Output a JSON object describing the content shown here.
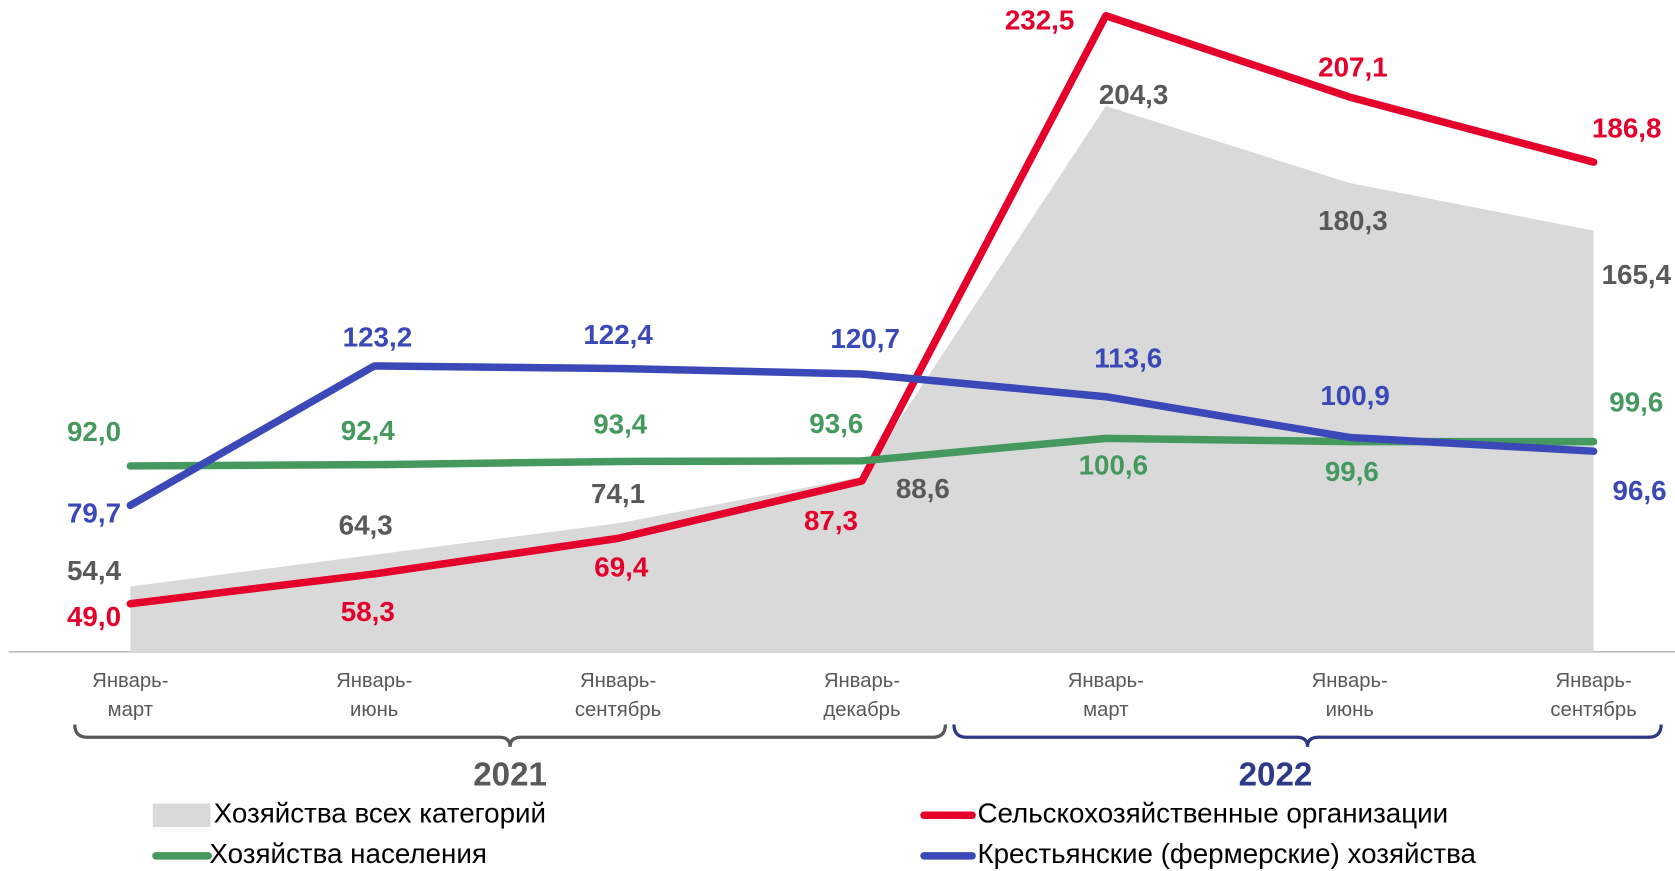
{
  "chart_data": {
    "type": "line",
    "categories": [
      [
        "Январь-",
        "март"
      ],
      [
        "Январь-",
        "июнь"
      ],
      [
        "Январь-",
        "сентябрь"
      ],
      [
        "Январь-",
        "декабрь"
      ],
      [
        "Январь-",
        "март"
      ],
      [
        "Январь-",
        "июнь"
      ],
      [
        "Январь-",
        "сентябрь"
      ]
    ],
    "groups": [
      {
        "label": "2021",
        "color": "#595959"
      },
      {
        "label": "2022",
        "color": "#2e3a87"
      }
    ],
    "ylim": [
      34,
      234
    ],
    "series": [
      {
        "name": "Хозяйства всех категорий",
        "kind": "area",
        "color": "#d9d9d9",
        "label_color": "#595959",
        "values": [
          54.4,
          64.3,
          74.1,
          88.6,
          204.3,
          180.3,
          165.4
        ],
        "value_labels": [
          "54,4",
          "64,3",
          "74,1",
          "88,6",
          "204,3",
          "180,3",
          "165,4"
        ]
      },
      {
        "name": "Сельскохозяйственные организации",
        "kind": "line",
        "color": "#e4002b",
        "label_color": "#e4002b",
        "values": [
          49.0,
          58.3,
          69.4,
          87.3,
          232.5,
          207.1,
          186.8
        ],
        "value_labels": [
          "49,0",
          "58,3",
          "69,4",
          "87,3",
          "232,5",
          "207,1",
          "186,8"
        ]
      },
      {
        "name": "Хозяйства населения",
        "kind": "line",
        "color": "#45995f",
        "label_color": "#45995f",
        "values": [
          92.0,
          92.4,
          93.4,
          93.6,
          100.6,
          99.6,
          99.6
        ],
        "value_labels": [
          "92,0",
          "92,4",
          "93,4",
          "93,6",
          "100,6",
          "99,6",
          "99,6"
        ]
      },
      {
        "name": "Крестьянские (фермерские) хозяйства",
        "kind": "line",
        "color": "#3a48b8",
        "label_color": "#3a48b8",
        "values": [
          79.7,
          123.2,
          122.4,
          120.7,
          113.6,
          100.9,
          96.6
        ],
        "value_labels": [
          "79,7",
          "123,2",
          "122,4",
          "120,7",
          "113,6",
          "100,9",
          "96,6"
        ]
      }
    ]
  }
}
